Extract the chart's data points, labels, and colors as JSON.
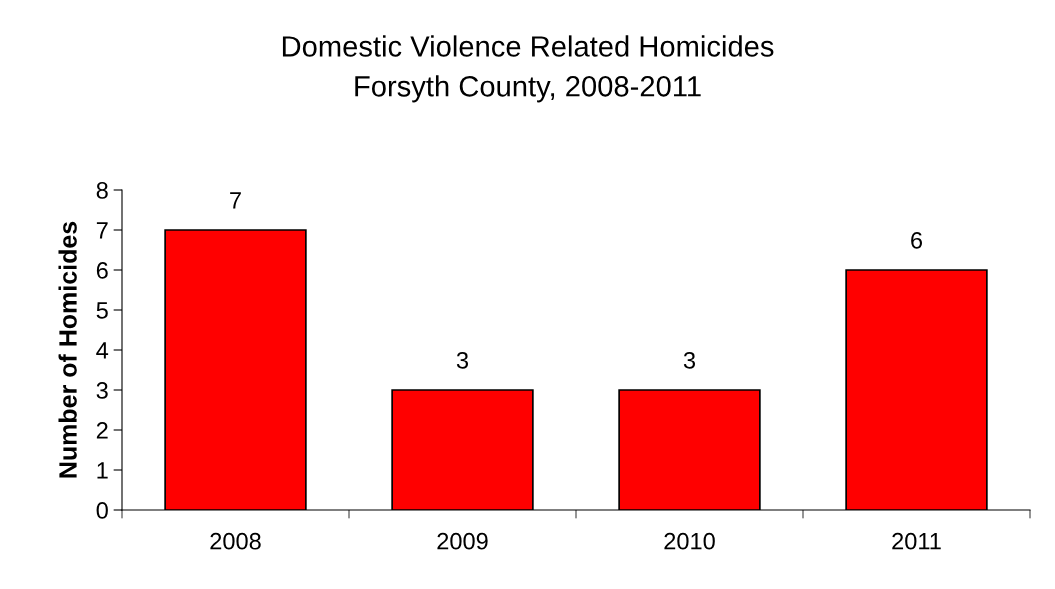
{
  "chart_data": {
    "type": "bar",
    "title": "Domestic Violence Related Homicides\nForsyth County, 2008-2011",
    "ylabel": "Number of Homicides",
    "categories": [
      "2008",
      "2009",
      "2010",
      "2011"
    ],
    "values": [
      7,
      3,
      3,
      6
    ],
    "color": "#ff0000",
    "ylim": [
      0,
      8
    ],
    "yticks": [
      0,
      1,
      2,
      3,
      4,
      5,
      6,
      7,
      8
    ],
    "grid": false,
    "legend": false,
    "data_labels": true
  }
}
